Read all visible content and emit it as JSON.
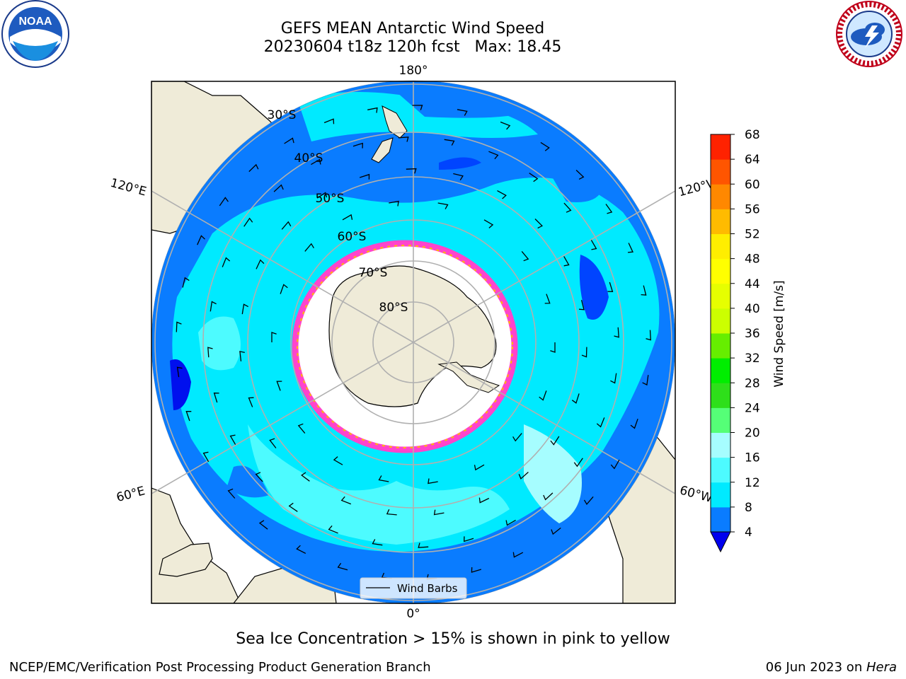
{
  "header": {
    "title_line1": "GEFS MEAN Antarctic Wind Speed",
    "title_line2": "20230604 t18z 120h fcst   Max: 18.45"
  },
  "logos": {
    "left": {
      "name": "noaa-logo",
      "text": "NOAA"
    },
    "right": {
      "name": "national-weather-service-logo",
      "text": "NATIONAL WEATHER SERVICE"
    }
  },
  "map": {
    "longitude_labels": {
      "top": "180°",
      "bottom": "0°",
      "upper_left": "120°E",
      "upper_right": "120°W",
      "lower_left": "60°E",
      "lower_right": "60°W"
    },
    "latitude_labels": [
      "30°S",
      "40°S",
      "50°S",
      "60°S",
      "70°S",
      "80°S"
    ],
    "legend_label": "Wind Barbs",
    "colors": {
      "land": "#efebd8",
      "ocean_low": "#0044ff",
      "wind_4_8": "#0a7cff",
      "wind_8_12": "#00eaff",
      "wind_12_16": "#4dfbff",
      "wind_16_20": "#a6fdff",
      "sea_ice_edge": "#ff44cc",
      "grid": "#b0b0b0"
    }
  },
  "colorbar": {
    "label": "Wind Speed [m/s]",
    "ticks": [
      "4",
      "8",
      "12",
      "16",
      "20",
      "24",
      "28",
      "32",
      "36",
      "40",
      "44",
      "48",
      "52",
      "56",
      "60",
      "64",
      "68"
    ],
    "colors": [
      "#0a7cff",
      "#00eaff",
      "#4dfbff",
      "#a6fdff",
      "#55ff77",
      "#2edf1a",
      "#00ee00",
      "#66ee00",
      "#ccff00",
      "#e6ff00",
      "#ffff00",
      "#ffee00",
      "#ffbb00",
      "#ff8800",
      "#ff5500",
      "#ff2200",
      "#ff0000"
    ],
    "under_color": "#0000ee"
  },
  "subtitle": "Sea Ice Concentration > 15% is shown in pink to yellow",
  "footer": {
    "left": "NCEP/EMC/Verification Post Processing Product Generation Branch",
    "right_date": "06 Jun 2023 on ",
    "right_host": "Hera"
  }
}
